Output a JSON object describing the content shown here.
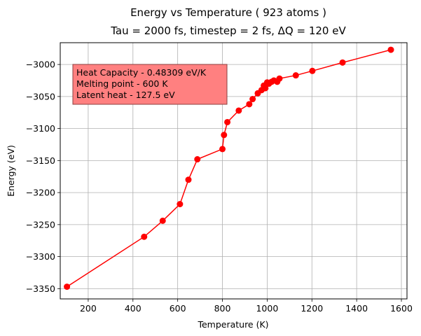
{
  "chart_data": {
    "type": "line",
    "title": "Energy vs Temperature ( 923 atoms )",
    "subtitle": "Tau = 2000 fs, timestep = 2 fs, ΔQ = 120 eV",
    "xlabel": "Temperature (K)",
    "ylabel": "Energy (eV)",
    "xlim": [
      75,
      1625
    ],
    "ylim": [
      -3366,
      -2966
    ],
    "xticks": [
      200,
      400,
      600,
      800,
      1000,
      1200,
      1400,
      1600
    ],
    "yticks": [
      -3350,
      -3300,
      -3250,
      -3200,
      -3150,
      -3100,
      -3050,
      -3000
    ],
    "grid": true,
    "color": "#ff0000",
    "series": [
      {
        "marker": "circle",
        "x": [
          105,
          450,
          533,
          610,
          648,
          688,
          800,
          807,
          822,
          873,
          920,
          935,
          958,
          975,
          985,
          992,
          1000,
          1008,
          1020,
          1030,
          1045,
          1055,
          1128,
          1202,
          1337,
          1553
        ],
        "y": [
          -3347,
          -3269,
          -3244,
          -3218,
          -3180,
          -3148,
          -3132,
          -3110,
          -3090,
          -3072,
          -3062,
          -3054,
          -3045,
          -3040,
          -3033,
          -3037,
          -3028,
          -3030,
          -3027,
          -3025,
          -3027,
          -3022,
          -3017,
          -3010,
          -2997,
          -2977
        ]
      }
    ],
    "annotation": {
      "lines": [
        "Heat Capacity - 0.48309 eV/K",
        "Melting point - 600 K",
        "Latent heat - 127.5 eV"
      ],
      "background": "#ff8080",
      "border": "#8b4040",
      "placement": "top-left"
    }
  }
}
